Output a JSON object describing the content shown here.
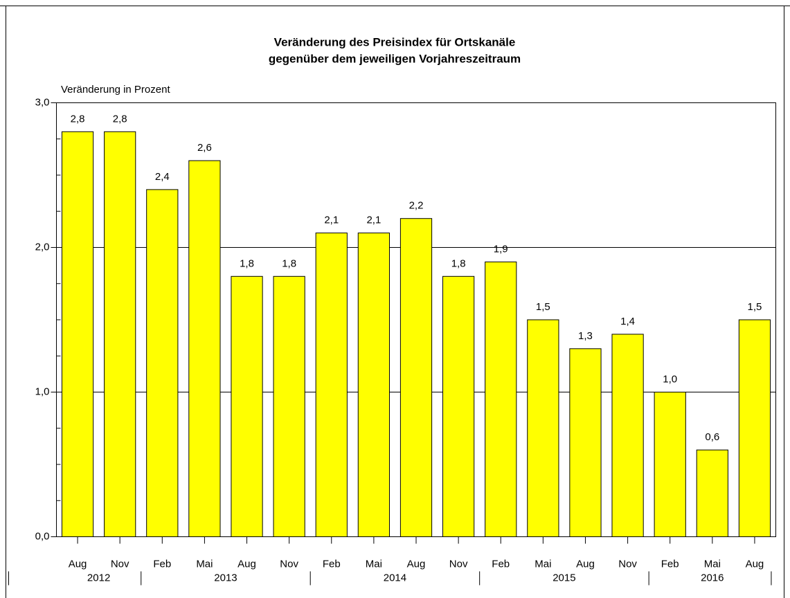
{
  "chart_data": {
    "type": "bar",
    "title": [
      "Veränderung des Preisindex für Ortskanäle",
      "gegenüber dem jeweiligen Vorjahreszeitraum"
    ],
    "y_label": "Veränderung in Prozent",
    "categories": [
      "Aug",
      "Nov",
      "Feb",
      "Mai",
      "Aug",
      "Nov",
      "Feb",
      "Mai",
      "Aug",
      "Nov",
      "Feb",
      "Mai",
      "Aug",
      "Nov",
      "Feb",
      "Mai",
      "Aug"
    ],
    "year_groups": [
      {
        "label": "2012",
        "size": 2
      },
      {
        "label": "2013",
        "size": 4
      },
      {
        "label": "2014",
        "size": 4
      },
      {
        "label": "2015",
        "size": 4
      },
      {
        "label": "2016",
        "size": 3
      }
    ],
    "values": [
      2.8,
      2.8,
      2.4,
      2.6,
      1.8,
      1.8,
      2.1,
      2.1,
      2.2,
      1.8,
      1.9,
      1.5,
      1.3,
      1.4,
      1.0,
      0.6,
      1.5
    ],
    "value_labels": [
      "2,8",
      "2,8",
      "2,4",
      "2,6",
      "1,8",
      "1,8",
      "2,1",
      "2,1",
      "2,2",
      "1,8",
      "1,9",
      "1,5",
      "1,3",
      "1,4",
      "1,0",
      "0,6",
      "1,5"
    ],
    "color": "#ffff00",
    "ylim": [
      0,
      3
    ],
    "yticks": [
      {
        "value": 0,
        "label": "0,0"
      },
      {
        "value": 1,
        "label": "1,0"
      },
      {
        "value": 2,
        "label": "2,0"
      },
      {
        "value": 3,
        "label": "3,0"
      }
    ],
    "minor_yticks": [
      0.25,
      0.5,
      0.75,
      1.25,
      1.5,
      1.75,
      2.25,
      2.5,
      2.75
    ],
    "grid": true
  }
}
